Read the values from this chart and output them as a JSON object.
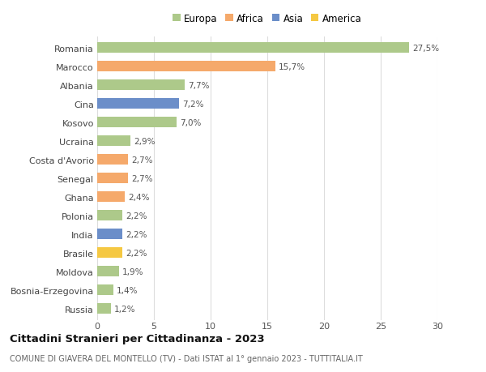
{
  "countries": [
    "Romania",
    "Marocco",
    "Albania",
    "Cina",
    "Kosovo",
    "Ucraina",
    "Costa d'Avorio",
    "Senegal",
    "Ghana",
    "Polonia",
    "India",
    "Brasile",
    "Moldova",
    "Bosnia-Erzegovina",
    "Russia"
  ],
  "values": [
    27.5,
    15.7,
    7.7,
    7.2,
    7.0,
    2.9,
    2.7,
    2.7,
    2.4,
    2.2,
    2.2,
    2.2,
    1.9,
    1.4,
    1.2
  ],
  "labels": [
    "27,5%",
    "15,7%",
    "7,7%",
    "7,2%",
    "7,0%",
    "2,9%",
    "2,7%",
    "2,7%",
    "2,4%",
    "2,2%",
    "2,2%",
    "2,2%",
    "1,9%",
    "1,4%",
    "1,2%"
  ],
  "continents": [
    "Europa",
    "Africa",
    "Europa",
    "Asia",
    "Europa",
    "Europa",
    "Africa",
    "Africa",
    "Africa",
    "Europa",
    "Asia",
    "America",
    "Europa",
    "Europa",
    "Europa"
  ],
  "colors": {
    "Europa": "#adc98a",
    "Africa": "#f5a96b",
    "Asia": "#6b8ec9",
    "America": "#f5c842"
  },
  "legend_order": [
    "Europa",
    "Africa",
    "Asia",
    "America"
  ],
  "title": "Cittadini Stranieri per Cittadinanza - 2023",
  "subtitle": "COMUNE DI GIAVERA DEL MONTELLO (TV) - Dati ISTAT al 1° gennaio 2023 - TUTTITALIA.IT",
  "xlim": [
    0,
    30
  ],
  "xticks": [
    0,
    5,
    10,
    15,
    20,
    25,
    30
  ],
  "background_color": "#ffffff",
  "grid_color": "#dddddd",
  "bar_height": 0.55,
  "label_fontsize": 7.5,
  "ytick_fontsize": 8.0,
  "xtick_fontsize": 8.0,
  "legend_fontsize": 8.5,
  "title_fontsize": 9.5,
  "subtitle_fontsize": 7.0,
  "label_color": "#555555",
  "ytick_color": "#444444"
}
